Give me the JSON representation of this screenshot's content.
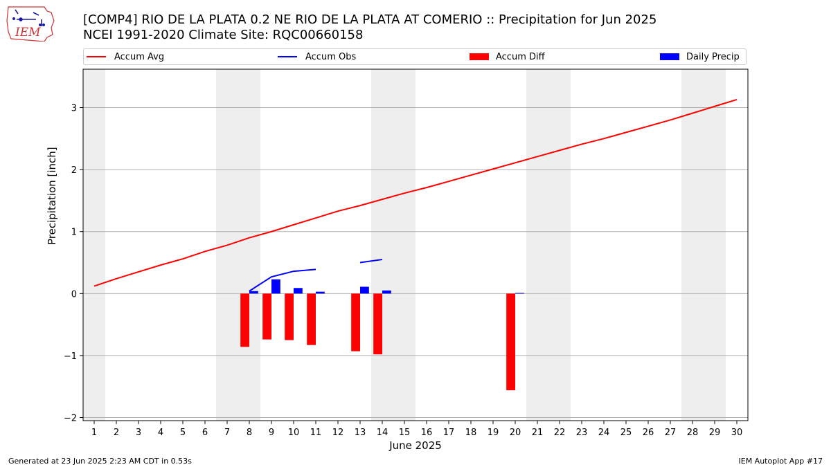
{
  "header": {
    "title_line1": "[COMP4] RIO DE LA PLATA 0.2 NE RIO DE LA PLATA AT COMERIO :: Precipitation for Jun 2025",
    "title_line2": "NCEI 1991-2020 Climate Site: RQC00660158",
    "logo_text": "IEM"
  },
  "legend": {
    "items": [
      {
        "label": "Accum Avg",
        "color": "#ff0000",
        "kind": "line"
      },
      {
        "label": "Accum Obs",
        "color": "#0000ff",
        "kind": "line"
      },
      {
        "label": "Accum Diff",
        "color": "#ff0000",
        "kind": "bar"
      },
      {
        "label": "Daily Precip",
        "color": "#0000ff",
        "kind": "bar"
      }
    ]
  },
  "footer": {
    "left": "Generated at 23 Jun 2025 2:23 AM CDT in 0.53s",
    "right": "IEM Autoplot App #17"
  },
  "chart_data": {
    "type": "bar",
    "xlabel": "June 2025",
    "ylabel": "Precipitation [inch]",
    "xlim": [
      0.5,
      30.5
    ],
    "ylim": [
      -2.05,
      3.62
    ],
    "x_ticks": [
      1,
      2,
      3,
      4,
      5,
      6,
      7,
      8,
      9,
      10,
      11,
      12,
      13,
      14,
      15,
      16,
      17,
      18,
      19,
      20,
      21,
      22,
      23,
      24,
      25,
      26,
      27,
      28,
      29,
      30
    ],
    "y_ticks": [
      -2,
      -1,
      0,
      1,
      2,
      3
    ],
    "y_tick_labels": [
      "−2",
      "−1",
      "0",
      "1",
      "2",
      "3"
    ],
    "grid": "y",
    "weekend_shading": [
      [
        0.5,
        1.5
      ],
      [
        6.5,
        8.5
      ],
      [
        13.5,
        15.5
      ],
      [
        20.5,
        22.5
      ],
      [
        27.5,
        29.5
      ]
    ],
    "shade_color": "#eeeeee",
    "series": [
      {
        "name": "Accum Avg",
        "kind": "line",
        "color": "#ff0000",
        "x": [
          1,
          2,
          3,
          4,
          5,
          6,
          7,
          8,
          9,
          10,
          11,
          12,
          13,
          14,
          15,
          16,
          17,
          18,
          19,
          20,
          21,
          22,
          23,
          24,
          25,
          26,
          27,
          28,
          29,
          30
        ],
        "y": [
          0.12,
          0.24,
          0.35,
          0.46,
          0.56,
          0.68,
          0.78,
          0.9,
          1.0,
          1.11,
          1.22,
          1.33,
          1.42,
          1.52,
          1.62,
          1.71,
          1.81,
          1.91,
          2.01,
          2.11,
          2.21,
          2.31,
          2.41,
          2.5,
          2.6,
          2.7,
          2.8,
          2.91,
          3.02,
          3.13
        ]
      },
      {
        "name": "Accum Obs",
        "kind": "line",
        "color": "#0000ff",
        "segments": [
          {
            "x": [
              8,
              9,
              10,
              11
            ],
            "y": [
              0.04,
              0.27,
              0.36,
              0.39
            ]
          },
          {
            "x": [
              13,
              14
            ],
            "y": [
              0.5,
              0.55
            ]
          }
        ]
      },
      {
        "name": "Accum Diff",
        "kind": "bar",
        "color": "#ff0000",
        "x": [
          8,
          9,
          10,
          11,
          13,
          14,
          20
        ],
        "y": [
          -0.86,
          -0.74,
          -0.75,
          -0.83,
          -0.93,
          -0.98,
          -1.56
        ]
      },
      {
        "name": "Daily Precip",
        "kind": "bar",
        "color": "#0000ff",
        "x": [
          8,
          9,
          10,
          11,
          13,
          14,
          20
        ],
        "y": [
          0.04,
          0.23,
          0.09,
          0.03,
          0.11,
          0.05,
          0.01
        ]
      }
    ]
  }
}
